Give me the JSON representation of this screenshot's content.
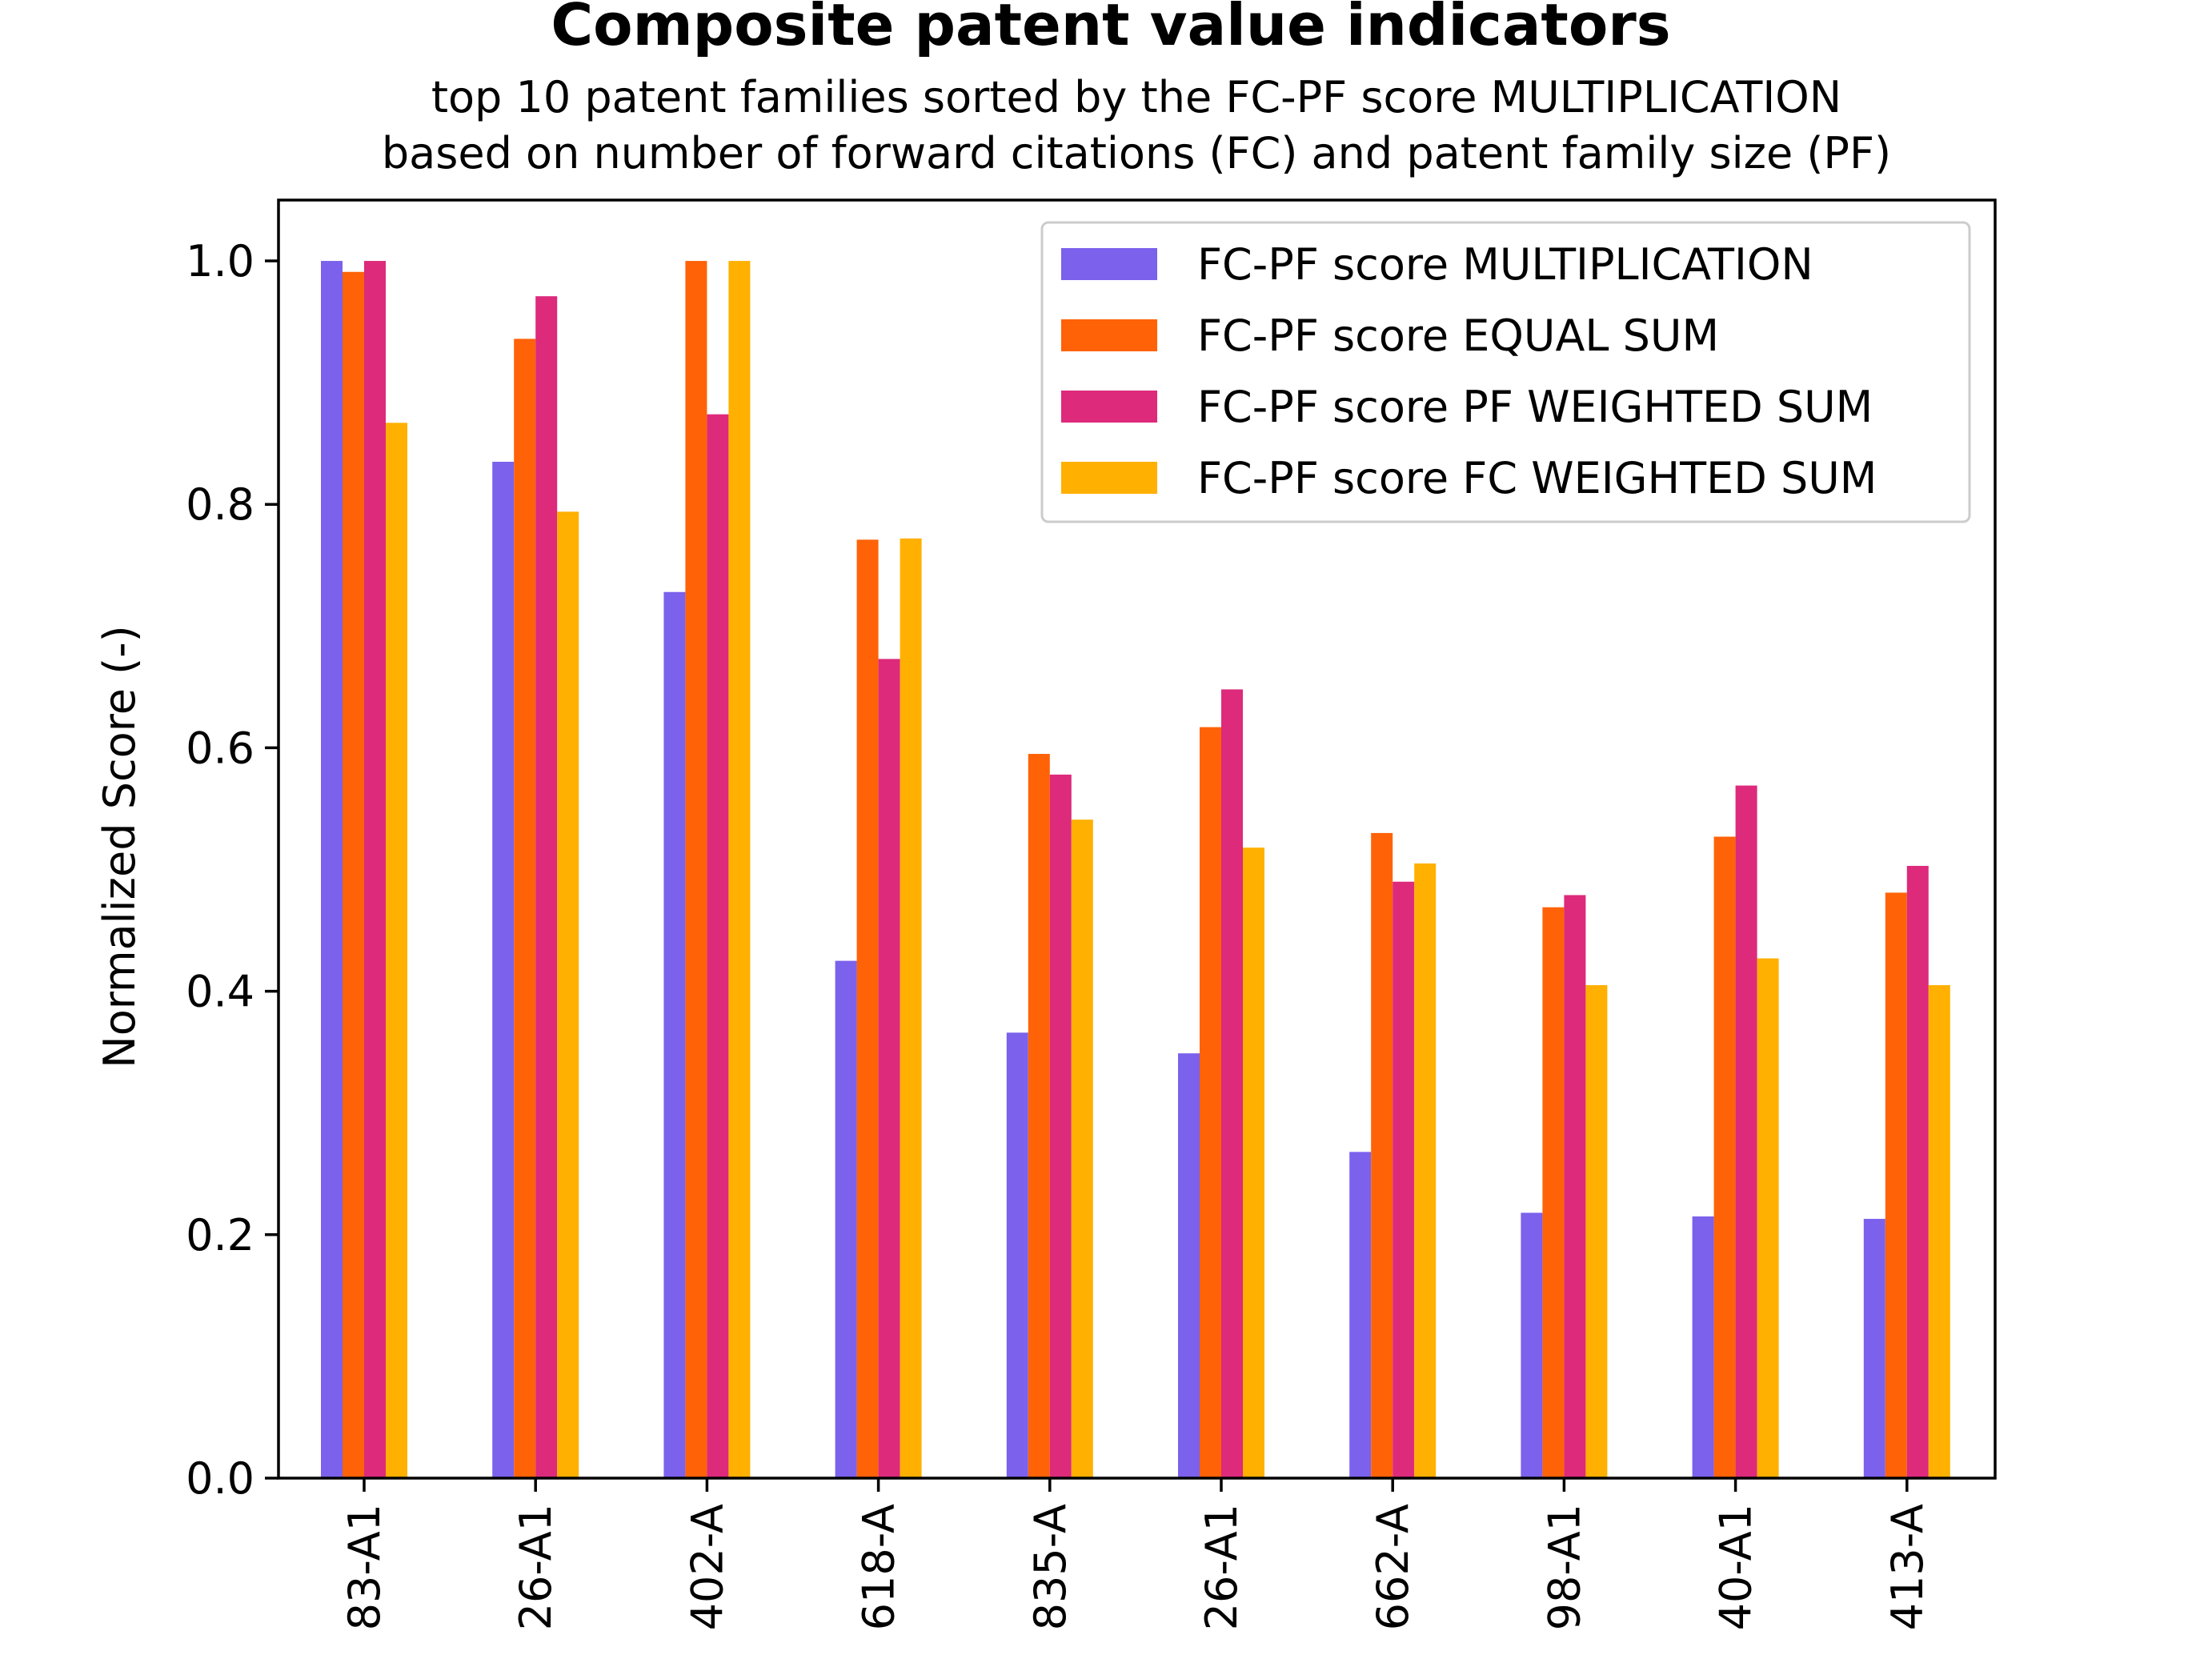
{
  "chart_data": {
    "type": "bar",
    "title": "Composite patent value indicators",
    "subtitle": [
      "top 10 patent families sorted by the FC-PF score MULTIPLICATION",
      "based on number of forward citations (FC) and patent family size (PF)"
    ],
    "xlabel": "",
    "ylabel": "Normalized Score (-)",
    "ylim": [
      0,
      1.05
    ],
    "yticks": [
      "0.0",
      "0.2",
      "0.4",
      "0.6",
      "0.8",
      "1.0"
    ],
    "grid": false,
    "legend_position": "top-right",
    "categories": [
      "83-A1",
      "26-A1",
      "402-A",
      "618-A",
      "835-A",
      "26-A1",
      "662-A",
      "98-A1",
      "40-A1",
      "413-A"
    ],
    "series": [
      {
        "name": "FC-PF score MULTIPLICATION",
        "color": "#7b61ec",
        "values": [
          1.0,
          0.835,
          0.728,
          0.425,
          0.366,
          0.349,
          0.268,
          0.218,
          0.215,
          0.213
        ]
      },
      {
        "name": "FC-PF score EQUAL SUM",
        "color": "#ff6207",
        "values": [
          0.991,
          0.936,
          1.0,
          0.771,
          0.595,
          0.617,
          0.53,
          0.469,
          0.527,
          0.481
        ]
      },
      {
        "name": "FC-PF score PF WEIGHTED SUM",
        "color": "#dd2a7b",
        "values": [
          1.0,
          0.971,
          0.874,
          0.673,
          0.578,
          0.648,
          0.49,
          0.479,
          0.569,
          0.503
        ]
      },
      {
        "name": "FC-PF score FC WEIGHTED SUM",
        "color": "#ffb000",
        "values": [
          0.867,
          0.794,
          1.0,
          0.772,
          0.541,
          0.518,
          0.505,
          0.405,
          0.427,
          0.405
        ]
      }
    ]
  }
}
